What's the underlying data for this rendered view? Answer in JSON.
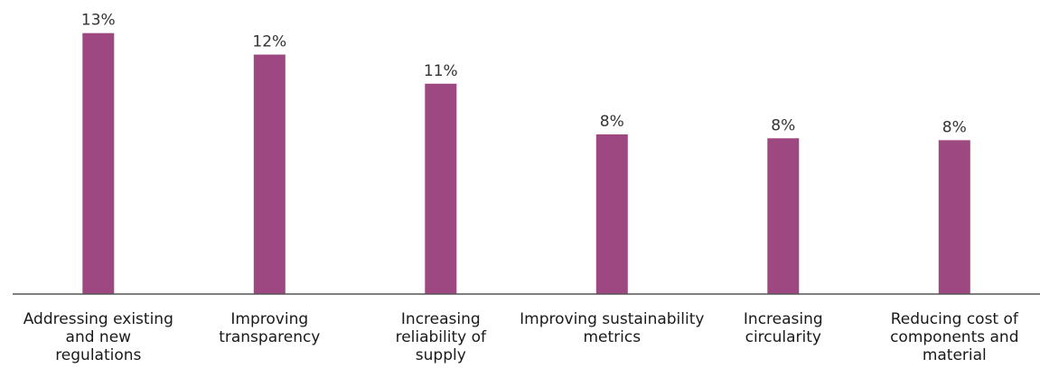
{
  "chart_data": {
    "type": "bar",
    "categories": [
      "Addressing existing and new regulations",
      "Improving transparency",
      "Increasing reliability of supply",
      "Improving sustainability metrics",
      "Increasing circularity",
      "Reducing cost of components and material"
    ],
    "category_lines": [
      [
        "Addressing existing",
        "and new",
        "regulations"
      ],
      [
        "Improving",
        "transparency"
      ],
      [
        "Increasing",
        "reliability of",
        "supply"
      ],
      [
        "Improving sustainability",
        "metrics"
      ],
      [
        "Increasing",
        "circularity"
      ],
      [
        "Reducing cost of",
        "components and",
        "material"
      ]
    ],
    "values": [
      13.4,
      12.3,
      10.8,
      8.2,
      8.0,
      7.9
    ],
    "value_labels": [
      "13%",
      "12%",
      "11%",
      "8%",
      "8%",
      "8%"
    ],
    "title": "",
    "xlabel": "",
    "ylabel": "",
    "ylim": [
      0,
      15.1
    ],
    "grid": false,
    "legend": "none",
    "colors": {
      "bar": "#9e4882",
      "axis": "#555555"
    }
  }
}
